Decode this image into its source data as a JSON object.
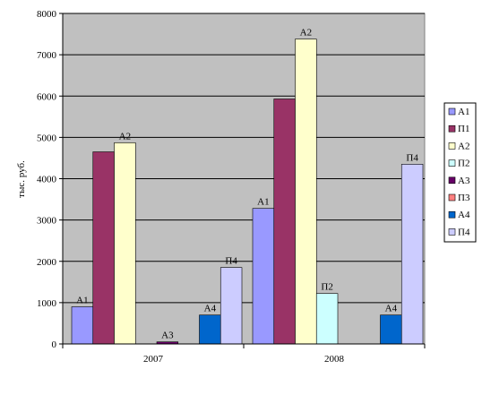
{
  "chart_data": {
    "type": "bar",
    "title": "",
    "xlabel": "",
    "ylabel": "тыс. руб.",
    "ylim": [
      0,
      8000
    ],
    "yticks": [
      0,
      1000,
      2000,
      3000,
      4000,
      5000,
      6000,
      7000,
      8000
    ],
    "grid": true,
    "legend_position": "right",
    "plot_background": "#c0c0c0",
    "categories": [
      "2007",
      "2008"
    ],
    "series": [
      {
        "name": "А1",
        "color": "#9999ff",
        "values": [
          900,
          3280
        ],
        "labels": [
          "А1",
          "А1"
        ]
      },
      {
        "name": "П1",
        "color": "#993366",
        "values": [
          4650,
          5930
        ],
        "labels": [
          "",
          ""
        ]
      },
      {
        "name": "А2",
        "color": "#ffffcc",
        "values": [
          4870,
          7380
        ],
        "labels": [
          "А2",
          "А2"
        ]
      },
      {
        "name": "П2",
        "color": "#ccffff",
        "values": [
          0,
          1220
        ],
        "labels": [
          "",
          "П2"
        ]
      },
      {
        "name": "А3",
        "color": "#660066",
        "values": [
          50,
          0
        ],
        "labels": [
          "А3",
          ""
        ]
      },
      {
        "name": "П3",
        "color": "#ff8080",
        "values": [
          0,
          0
        ],
        "labels": [
          "",
          ""
        ]
      },
      {
        "name": "А4",
        "color": "#0066cc",
        "values": [
          700,
          700
        ],
        "labels": [
          "А4",
          "А4"
        ]
      },
      {
        "name": "П4",
        "color": "#ccccff",
        "values": [
          1850,
          4350
        ],
        "labels": [
          "П4",
          "П4"
        ]
      }
    ]
  }
}
